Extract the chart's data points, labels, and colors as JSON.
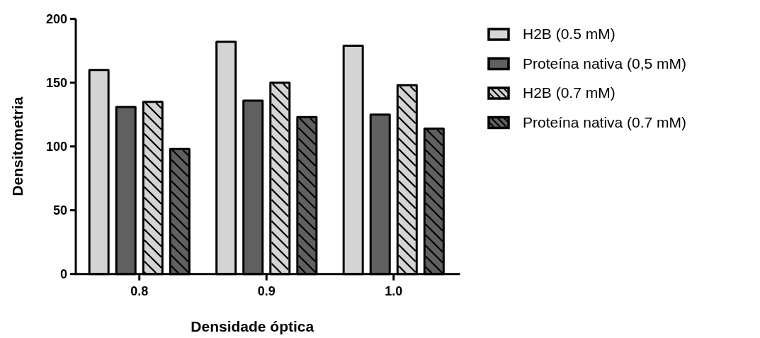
{
  "chart_data": {
    "type": "bar",
    "xlabel": "Densidade óptica",
    "ylabel": "Densitometria",
    "categories": [
      "0.8",
      "0.9",
      "1.0"
    ],
    "series": [
      {
        "name": "H2B (0.5 mM)",
        "color": "#d4d4d4",
        "values": [
          160,
          182,
          179
        ]
      },
      {
        "name": "Proteína nativa (0,5 mM)",
        "color": "#606060",
        "values": [
          131,
          136,
          125
        ]
      },
      {
        "name": "H2B (0.7 mM)",
        "color": "#d4d4d4",
        "values": [
          135,
          150,
          148
        ]
      },
      {
        "name": "Proteína nativa (0.7 mM)",
        "color": "#606060",
        "values": [
          98,
          123,
          114
        ]
      }
    ],
    "ylim": [
      0,
      200
    ],
    "yticks": [
      0,
      50,
      100,
      150,
      200
    ],
    "legend": "right",
    "grid": false
  }
}
